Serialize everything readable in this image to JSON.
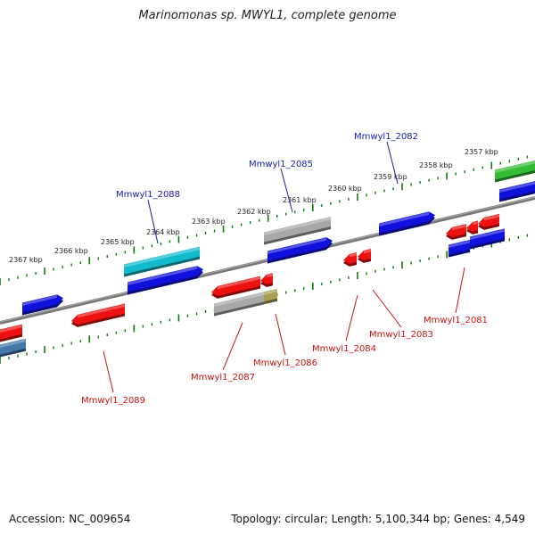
{
  "header": {
    "title": "Marinomonas sp. MWYL1, complete genome"
  },
  "footer": {
    "accession": "Accession: NC_009654",
    "topology": "Topology: circular; Length: 5,100,344 bp; Genes: 4,549"
  },
  "colors": {
    "axis": "#888888",
    "ticks": "#117711",
    "forward_label": "#1a1ab4",
    "reverse_label": "#cc1111",
    "red": "#ee1111",
    "blue": "#1111dd",
    "gray": "#a8a8a8",
    "cyan": "#11bbcc",
    "green": "#33bb33",
    "olive": "#aaa055",
    "steel": "#4477aa"
  },
  "kbp_labels": [
    "2357 kbp",
    "2358 kbp",
    "2359 kbp",
    "2360 kbp",
    "2361 kbp",
    "2362 kbp",
    "2363 kbp",
    "2364 kbp",
    "2365 kbp",
    "2366 kbp",
    "2367 kbp"
  ],
  "gene_labels_forward": [
    "Mmwyl1_2082",
    "Mmwyl1_2085",
    "Mmwyl1_2088"
  ],
  "gene_labels_reverse": [
    "Mmwyl1_2081",
    "Mmwyl1_2083",
    "Mmwyl1_2084",
    "Mmwyl1_2086",
    "Mmwyl1_2087",
    "Mmwyl1_2089"
  ]
}
